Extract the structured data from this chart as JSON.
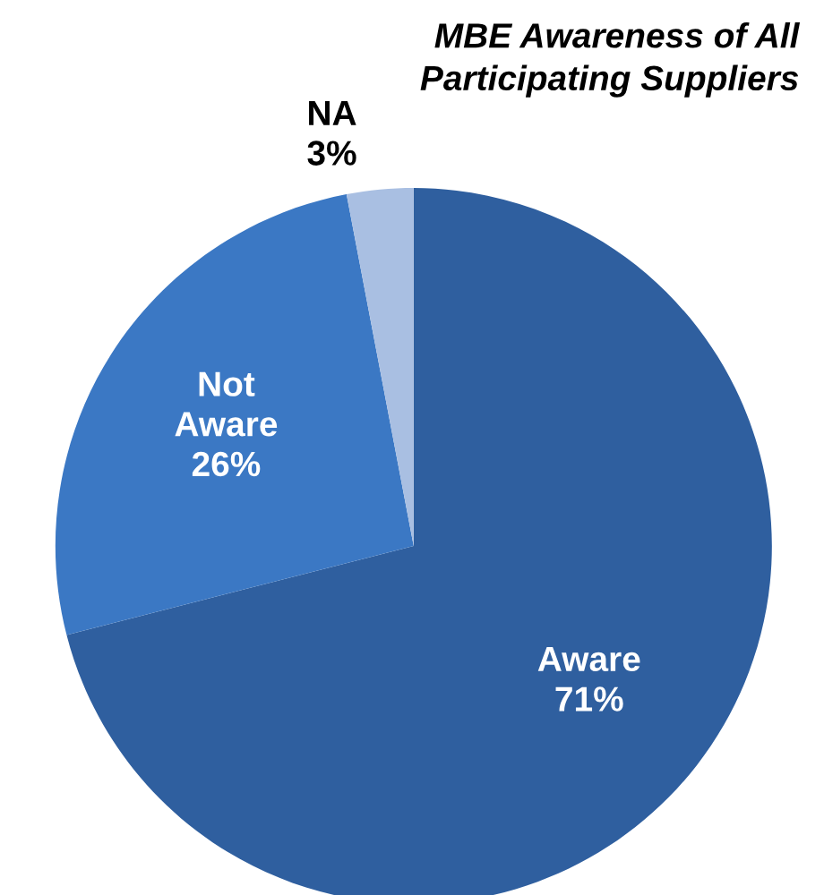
{
  "chart_data": {
    "type": "pie",
    "title": "MBE Awareness of All\nParticipating Suppliers",
    "categories": [
      "Aware",
      "Not\nAware",
      "NA"
    ],
    "values": [
      71,
      26,
      3
    ],
    "value_labels": [
      "71%",
      "26%",
      "3%"
    ],
    "colors": [
      "#2f5f9f",
      "#3b78c4",
      "#a9bfe2"
    ]
  }
}
